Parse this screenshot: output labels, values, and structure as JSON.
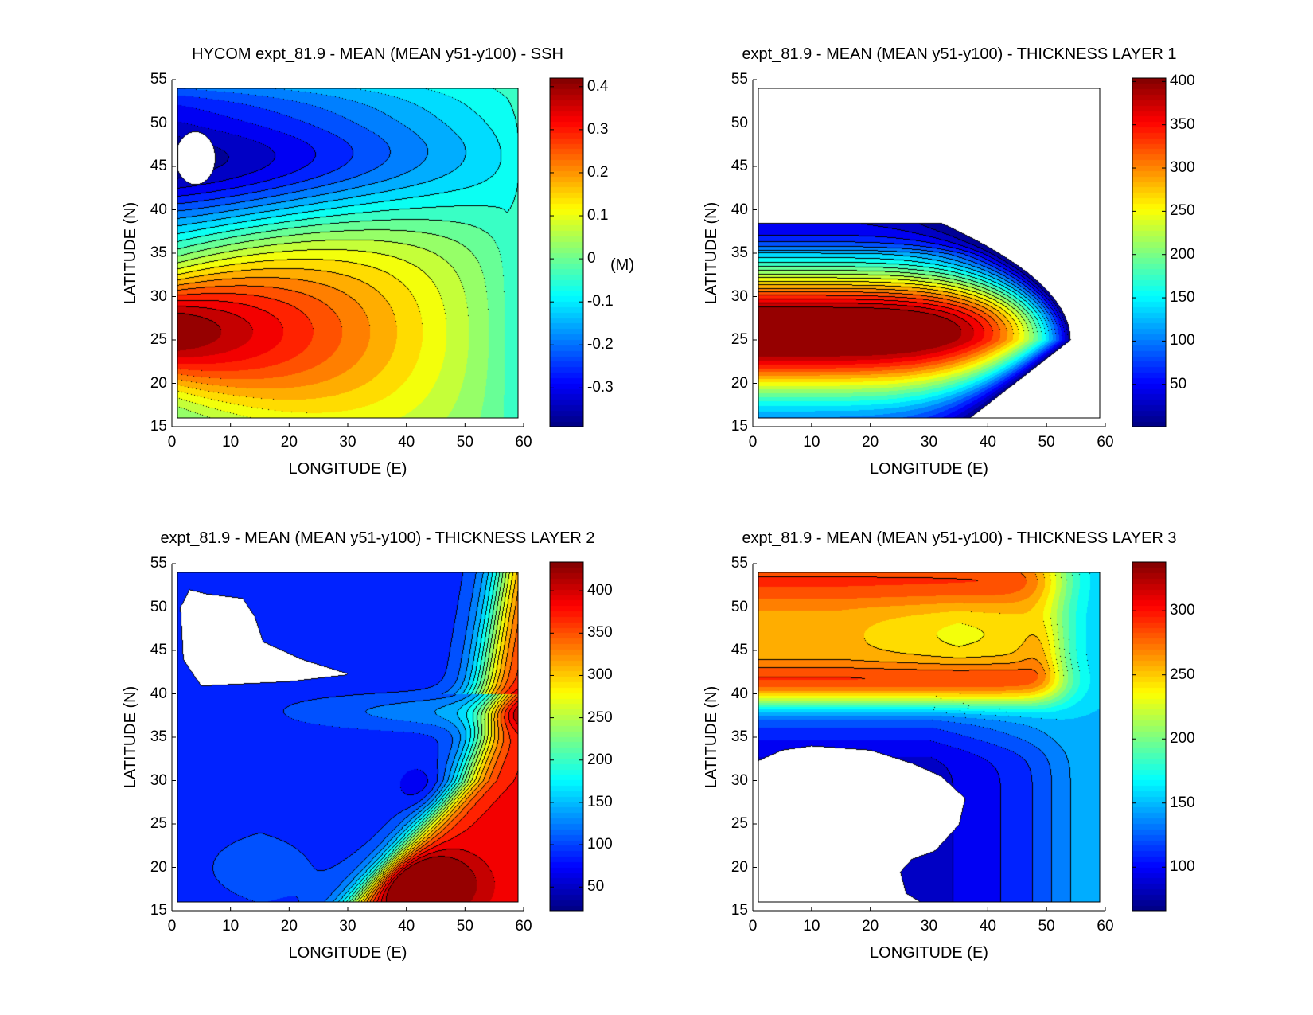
{
  "chart_data": [
    {
      "type": "heatmap",
      "title": "HYCOM expt_81.9 - MEAN (MEAN y51-y100) - SSH",
      "xlabel": "LONGITUDE (E)",
      "ylabel": "LATITUDE (N)",
      "xlim": [
        0,
        60
      ],
      "ylim": [
        15,
        55
      ],
      "xticks": [
        "0",
        "10",
        "20",
        "30",
        "40",
        "50",
        "60"
      ],
      "yticks": [
        "15",
        "20",
        "25",
        "30",
        "35",
        "40",
        "45",
        "50",
        "55"
      ],
      "colorbar": {
        "range": [
          -0.39,
          0.42
        ],
        "ticks": [
          "-0.3",
          "-0.2",
          "-0.1",
          "0",
          "0.1",
          "0.2",
          "0.3",
          "0.4"
        ],
        "tick_values": [
          -0.3,
          -0.2,
          -0.1,
          0,
          0.1,
          0.2,
          0.3,
          0.4
        ],
        "unit_label": "(M)"
      },
      "features": {
        "max": 0.4,
        "max_location": [
          2,
          26
        ],
        "min": -0.38,
        "min_location": [
          4,
          46
        ]
      }
    },
    {
      "type": "heatmap",
      "title": "expt_81.9 - MEAN (MEAN y51-y100) - THICKNESS LAYER 1",
      "xlabel": "LONGITUDE (E)",
      "ylabel": "LATITUDE (N)",
      "xlim": [
        0,
        60
      ],
      "ylim": [
        15,
        55
      ],
      "xticks": [
        "0",
        "10",
        "20",
        "30",
        "40",
        "50",
        "60"
      ],
      "yticks": [
        "15",
        "20",
        "25",
        "30",
        "35",
        "40",
        "45",
        "50",
        "55"
      ],
      "colorbar": {
        "range": [
          1,
          404
        ],
        "ticks": [
          "50",
          "100",
          "150",
          "200",
          "250",
          "300",
          "350",
          "400"
        ],
        "tick_values": [
          50,
          100,
          150,
          200,
          250,
          300,
          350,
          400
        ],
        "unit_label": ""
      },
      "features": {
        "max": 400,
        "max_location": [
          5,
          25
        ]
      }
    },
    {
      "type": "heatmap",
      "title": "expt_81.9 - MEAN (MEAN y51-y100) - THICKNESS LAYER 2",
      "xlabel": "LONGITUDE (E)",
      "ylabel": "LATITUDE (N)",
      "xlim": [
        0,
        60
      ],
      "ylim": [
        15,
        55
      ],
      "xticks": [
        "0",
        "10",
        "20",
        "30",
        "40",
        "50",
        "60"
      ],
      "yticks": [
        "15",
        "20",
        "25",
        "30",
        "35",
        "40",
        "45",
        "50",
        "55"
      ],
      "colorbar": {
        "range": [
          22,
          434
        ],
        "ticks": [
          "50",
          "100",
          "150",
          "200",
          "250",
          "300",
          "350",
          "400"
        ],
        "tick_values": [
          50,
          100,
          150,
          200,
          250,
          300,
          350,
          400
        ],
        "unit_label": ""
      },
      "features": {
        "max": 420,
        "max_location": [
          42,
          18
        ]
      }
    },
    {
      "type": "heatmap",
      "title": "expt_81.9 - MEAN (MEAN y51-y100) - THICKNESS LAYER 3",
      "xlabel": "LONGITUDE (E)",
      "ylabel": "LATITUDE (N)",
      "xlim": [
        0,
        60
      ],
      "ylim": [
        15,
        55
      ],
      "xticks": [
        "0",
        "10",
        "20",
        "30",
        "40",
        "50",
        "60"
      ],
      "yticks": [
        "15",
        "20",
        "25",
        "30",
        "35",
        "40",
        "45",
        "50",
        "55"
      ],
      "colorbar": {
        "range": [
          66,
          338
        ],
        "ticks": [
          "100",
          "150",
          "200",
          "250",
          "300"
        ],
        "tick_values": [
          100,
          150,
          200,
          250,
          300
        ],
        "unit_label": ""
      },
      "features": {
        "max": 330,
        "max_location": [
          18,
          41.5
        ]
      }
    }
  ]
}
